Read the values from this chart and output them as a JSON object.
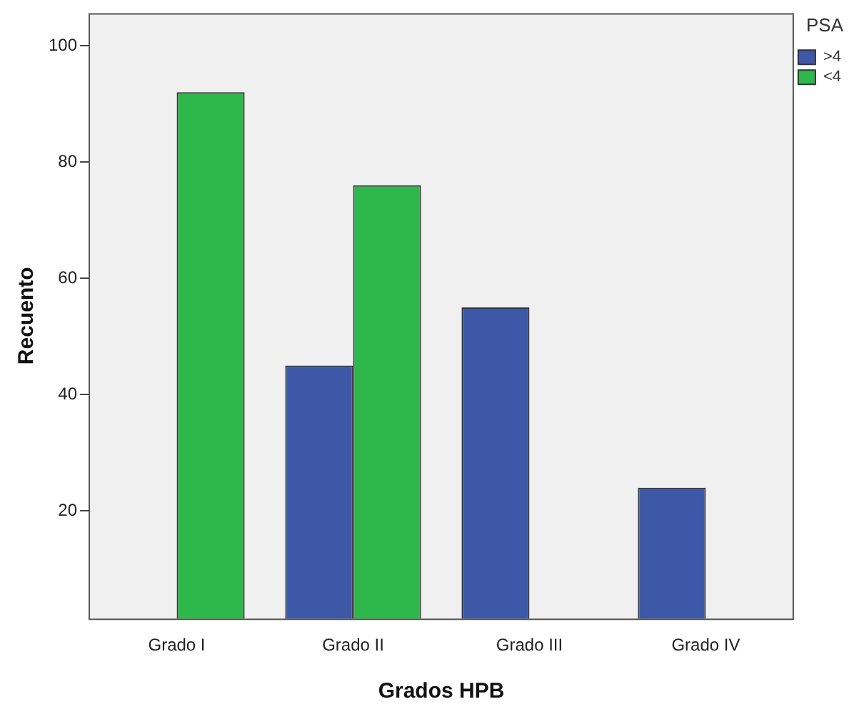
{
  "chart_data": {
    "type": "bar",
    "xlabel": "Grados HPB",
    "ylabel": "Recuento",
    "legend_title": "PSA",
    "categories": [
      "Grado I",
      "Grado II",
      "Grado III",
      "Grado IV"
    ],
    "series": [
      {
        "name": ">4",
        "color": "#3e58a8",
        "values": [
          null,
          45,
          55,
          24
        ]
      },
      {
        "name": "<4",
        "color": "#2eb74a",
        "values": [
          92,
          76,
          null,
          null
        ]
      }
    ],
    "ylim": [
      1.5,
      105.6
    ],
    "yticks": [
      20,
      40,
      60,
      80,
      100
    ],
    "grid": false,
    "legend": "top right"
  }
}
